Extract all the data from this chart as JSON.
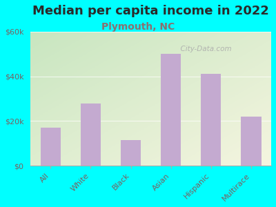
{
  "title": "Median per capita income in 2022",
  "subtitle": "Plymouth, NC",
  "categories": [
    "All",
    "White",
    "Black",
    "Asian",
    "Hispanic",
    "Multirace"
  ],
  "values": [
    17000,
    28000,
    11500,
    50000,
    41000,
    22000
  ],
  "bar_color": "#c4aad0",
  "title_fontsize": 13,
  "subtitle_fontsize": 10,
  "title_color": "#2a2a2a",
  "subtitle_color": "#8a7070",
  "tick_color": "#7a6060",
  "background_color": "#00FFFF",
  "plot_bg_topleft": "#c8e6c0",
  "plot_bg_bottomright": "#f0f0e0",
  "ylim": [
    0,
    60000
  ],
  "yticks": [
    0,
    20000,
    40000,
    60000
  ],
  "ytick_labels": [
    "$0",
    "$20k",
    "$40k",
    "$60k"
  ],
  "watermark": "  City-Data.com"
}
